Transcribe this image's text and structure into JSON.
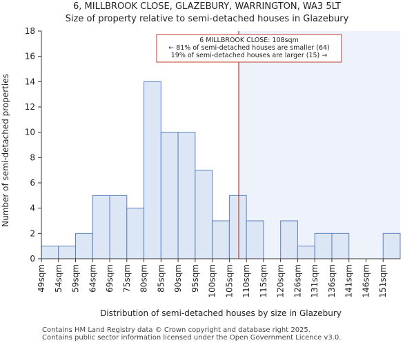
{
  "chart_data": {
    "type": "bar",
    "title": "6, MILLBROOK CLOSE, GLAZEBURY, WARRINGTON, WA3 5LT",
    "subtitle": "Size of property relative to semi-detached houses in Glazebury",
    "xlabel": "Distribution of semi-detached houses by size in Glazebury",
    "ylabel": "Number of semi-detached properties",
    "categories": [
      "49sqm",
      "54sqm",
      "59sqm",
      "64sqm",
      "69sqm",
      "75sqm",
      "80sqm",
      "85sqm",
      "90sqm",
      "95sqm",
      "100sqm",
      "105sqm",
      "110sqm",
      "115sqm",
      "120sqm",
      "126sqm",
      "131sqm",
      "136sqm",
      "141sqm",
      "146sqm",
      "151sqm"
    ],
    "values": [
      1,
      1,
      2,
      5,
      5,
      4,
      14,
      10,
      10,
      7,
      3,
      5,
      3,
      0,
      3,
      1,
      2,
      2,
      0,
      0,
      2
    ],
    "ylim": [
      0,
      18
    ],
    "yticks": [
      0,
      2,
      4,
      6,
      8,
      10,
      12,
      14,
      16,
      18
    ],
    "marker_value": 108,
    "marker_bin_position": 11.55,
    "annotation": {
      "line1": "6 MILLBROOK CLOSE: 108sqm",
      "line2": "← 81% of semi-detached houses are smaller (64)",
      "line3": "19% of semi-detached houses are larger (15) →"
    },
    "colors": {
      "bar_fill": "#dce6f5",
      "bar_stroke": "#5b7fbf",
      "marker": "#c0392b",
      "highlight_region": "#eef2fb"
    }
  },
  "footer": {
    "line1": "Contains HM Land Registry data © Crown copyright and database right 2025.",
    "line2": "Contains public sector information licensed under the Open Government Licence v3.0."
  }
}
